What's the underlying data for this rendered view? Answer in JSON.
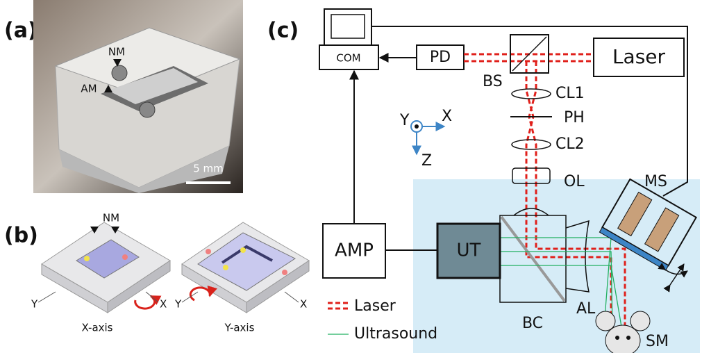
{
  "panels": {
    "a": {
      "label": "(a)",
      "annotations": [
        "NM",
        "AM"
      ],
      "scale_bar": "5 mm"
    },
    "b": {
      "label": "(b)",
      "annotations": [
        "NM"
      ],
      "left": {
        "axes": [
          "Y",
          "X"
        ],
        "caption": "X-axis"
      },
      "right": {
        "axes": [
          "Y",
          "X"
        ],
        "caption": "Y-axis"
      }
    },
    "c": {
      "label": "(c)",
      "components": {
        "com": "COM",
        "pd": "PD",
        "laser": "Laser",
        "bs": "BS",
        "cl1": "CL1",
        "ph": "PH",
        "cl2": "CL2",
        "ol": "OL",
        "ms": "MS",
        "amp": "AMP",
        "ut": "UT",
        "bc": "BC",
        "al": "AL",
        "sm": "SM"
      },
      "axes": [
        "Y",
        "X",
        "Z"
      ],
      "legend": [
        "Laser",
        "Ultrasound"
      ]
    }
  }
}
